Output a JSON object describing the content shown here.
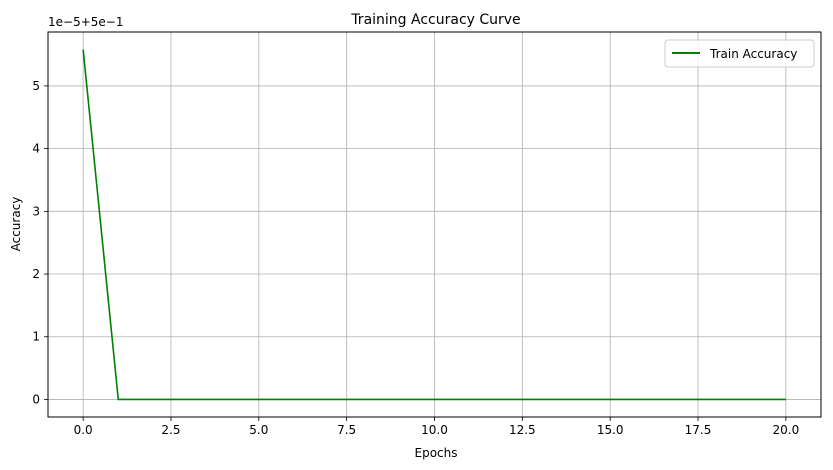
{
  "chart_data": {
    "type": "line",
    "title": "Training Accuracy Curve",
    "xlabel": "Epochs",
    "ylabel": "Accuracy",
    "offset_label": "1e−5+5e−1",
    "xlim": [
      -1,
      21
    ],
    "ylim": [
      -0.28,
      5.86
    ],
    "xticks": [
      0,
      2.5,
      5,
      7.5,
      10,
      12.5,
      15,
      17.5,
      20
    ],
    "xtick_labels": [
      "0.0",
      "2.5",
      "5.0",
      "7.5",
      "10.0",
      "12.5",
      "15.0",
      "17.5",
      "20.0"
    ],
    "yticks": [
      0,
      1,
      2,
      3,
      4,
      5
    ],
    "ytick_labels": [
      "0",
      "1",
      "2",
      "3",
      "4",
      "5"
    ],
    "grid": true,
    "legend_position": "upper right",
    "series": [
      {
        "name": "Train Accuracy",
        "color": "#008000",
        "x": [
          0,
          1,
          2,
          3,
          4,
          5,
          6,
          7,
          8,
          9,
          10,
          11,
          12,
          13,
          14,
          15,
          16,
          17,
          18,
          19,
          20
        ],
        "y": [
          5.58,
          0,
          0,
          0,
          0,
          0,
          0,
          0,
          0,
          0,
          0,
          0,
          0,
          0,
          0,
          0,
          0,
          0,
          0,
          0,
          0
        ]
      }
    ]
  }
}
